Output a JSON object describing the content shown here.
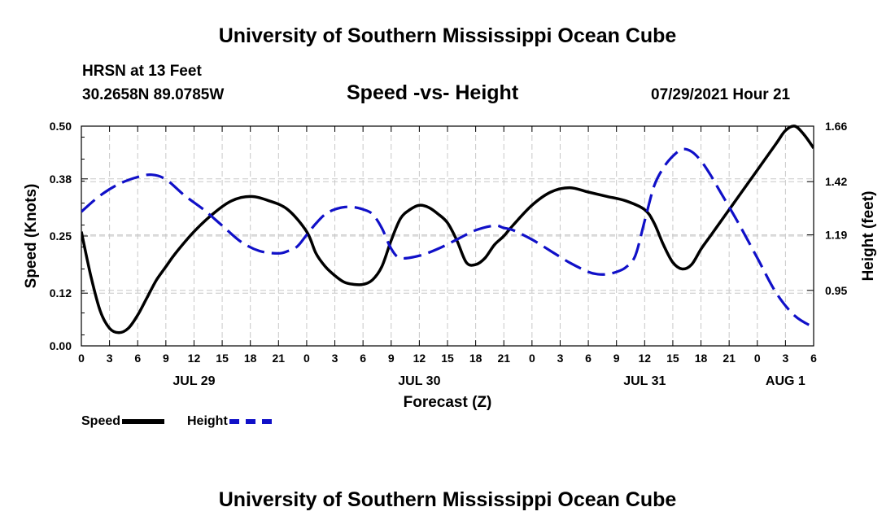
{
  "header": {
    "title": "University of Southern Mississippi Ocean Cube",
    "station_line1": "HRSN at 13 Feet",
    "station_line2": "30.2658N  89.0785W",
    "chart_title": "Speed -vs- Height",
    "timestamp": "07/29/2021 Hour 21"
  },
  "footer": {
    "title": "University of Southern Mississippi Ocean Cube"
  },
  "legend": {
    "speed_label": "Speed",
    "height_label": "Height"
  },
  "colors": {
    "speed": "#000000",
    "height": "#1010c8",
    "grid": "#c8c8c8"
  },
  "chart_data": {
    "type": "line",
    "title": "Speed -vs- Height",
    "xlabel": "Forecast (Z)",
    "ylabel_left": "Speed (Knots)",
    "ylabel_right": "Height (feet)",
    "x_unit": "hours since JUL 29 00Z",
    "xlim": [
      0,
      78
    ],
    "ylim_left": [
      0,
      0.5
    ],
    "ylim_right": [
      0.71,
      1.66
    ],
    "x_ticks": [
      0,
      3,
      6,
      9,
      12,
      15,
      18,
      21,
      24,
      27,
      30,
      33,
      36,
      39,
      42,
      45,
      48,
      51,
      54,
      57,
      60,
      63,
      66,
      69,
      72,
      75,
      78
    ],
    "x_tick_labels": [
      "0",
      "3",
      "6",
      "9",
      "12",
      "15",
      "18",
      "21",
      "0",
      "3",
      "6",
      "9",
      "12",
      "15",
      "18",
      "21",
      "0",
      "3",
      "6",
      "9",
      "12",
      "15",
      "18",
      "21",
      "0",
      "3",
      "6"
    ],
    "day_labels": [
      {
        "x": 12,
        "label": "JUL 29"
      },
      {
        "x": 36,
        "label": "JUL 30"
      },
      {
        "x": 60,
        "label": "JUL 31"
      },
      {
        "x": 75,
        "label": "AUG 1"
      }
    ],
    "y_ticks_left": [
      0.0,
      0.12,
      0.25,
      0.38,
      0.5
    ],
    "y_tick_labels_left": [
      "0.00",
      "0.12",
      "0.25",
      "0.38",
      "0.50"
    ],
    "y_ticks_right": [
      0.95,
      1.19,
      1.42,
      1.66
    ],
    "y_tick_labels_right": [
      "0.95",
      "1.19",
      "1.42",
      "1.66"
    ],
    "series": [
      {
        "name": "Speed",
        "axis": "left",
        "style": "solid",
        "x": [
          0,
          1,
          2,
          3,
          4,
          5,
          6,
          7,
          8,
          9,
          10,
          12,
          14,
          16,
          18,
          20,
          22,
          24,
          25,
          26,
          27,
          28,
          29,
          30,
          31,
          32,
          33,
          34,
          35,
          36,
          37,
          38,
          39,
          40,
          41,
          42,
          43,
          44,
          45,
          46,
          48,
          50,
          52,
          54,
          56,
          58,
          60,
          61,
          62,
          63,
          64,
          65,
          66,
          67,
          68,
          70,
          72,
          74,
          75,
          76,
          77,
          78
        ],
        "y": [
          0.26,
          0.16,
          0.08,
          0.04,
          0.03,
          0.04,
          0.07,
          0.11,
          0.15,
          0.18,
          0.21,
          0.26,
          0.3,
          0.33,
          0.34,
          0.33,
          0.31,
          0.26,
          0.21,
          0.18,
          0.16,
          0.145,
          0.14,
          0.14,
          0.15,
          0.18,
          0.24,
          0.29,
          0.31,
          0.32,
          0.315,
          0.3,
          0.28,
          0.24,
          0.19,
          0.185,
          0.2,
          0.23,
          0.25,
          0.275,
          0.32,
          0.35,
          0.36,
          0.35,
          0.34,
          0.33,
          0.31,
          0.28,
          0.23,
          0.19,
          0.175,
          0.185,
          0.22,
          0.25,
          0.28,
          0.34,
          0.4,
          0.46,
          0.49,
          0.5,
          0.48,
          0.45
        ]
      },
      {
        "name": "Height",
        "axis": "right",
        "style": "dashed",
        "x": [
          0,
          2,
          4,
          6,
          7.5,
          9,
          11,
          13,
          15,
          17,
          19,
          21,
          22,
          23,
          24,
          25,
          26,
          27,
          28,
          29,
          30,
          31,
          32,
          33,
          34,
          36,
          38,
          40,
          42,
          44,
          45,
          46,
          48,
          50,
          52,
          54,
          55,
          56,
          57,
          58,
          59,
          60,
          61,
          62,
          63,
          64,
          65,
          66,
          67,
          68,
          70,
          72,
          74,
          76,
          78
        ],
        "y": [
          1.29,
          1.36,
          1.41,
          1.44,
          1.45,
          1.43,
          1.36,
          1.3,
          1.23,
          1.16,
          1.12,
          1.11,
          1.12,
          1.14,
          1.19,
          1.24,
          1.28,
          1.3,
          1.31,
          1.31,
          1.3,
          1.28,
          1.22,
          1.13,
          1.09,
          1.1,
          1.13,
          1.17,
          1.21,
          1.23,
          1.22,
          1.21,
          1.17,
          1.12,
          1.07,
          1.03,
          1.02,
          1.02,
          1.03,
          1.05,
          1.1,
          1.25,
          1.4,
          1.48,
          1.53,
          1.56,
          1.55,
          1.51,
          1.45,
          1.38,
          1.24,
          1.09,
          0.94,
          0.84,
          0.79
        ]
      }
    ]
  }
}
